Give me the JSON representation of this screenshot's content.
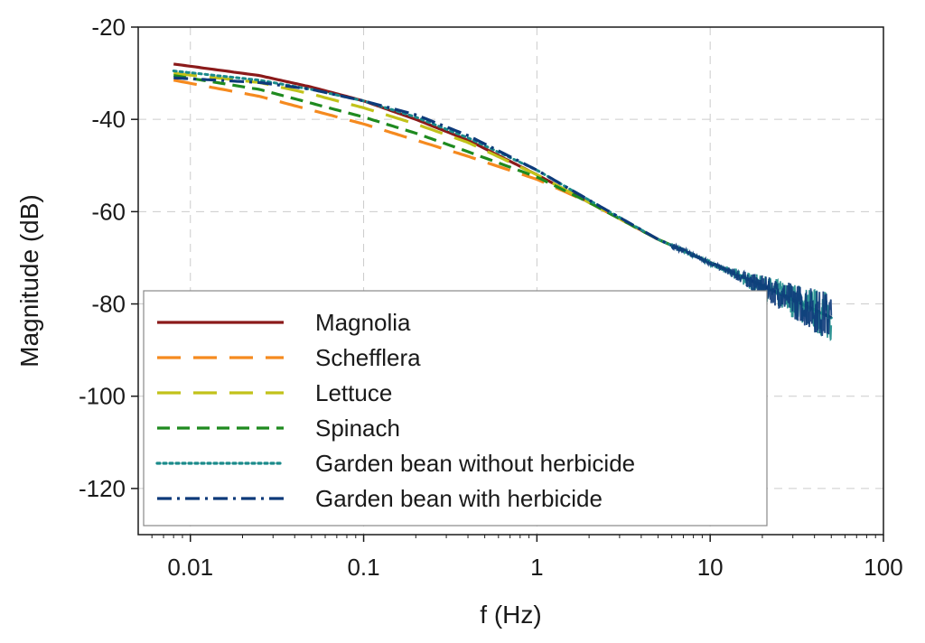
{
  "chart_data": {
    "type": "line",
    "xlabel": "f (Hz)",
    "ylabel": "Magnitude (dB)",
    "x_scale": "log",
    "xlim": [
      0.005,
      100
    ],
    "ylim": [
      -130,
      -20
    ],
    "x_ticks": [
      0.01,
      0.1,
      1,
      10,
      100
    ],
    "x_tick_labels": [
      "0.01",
      "0.1",
      "1",
      "10",
      "100"
    ],
    "y_ticks": [
      -20,
      -40,
      -60,
      -80,
      -100,
      -120
    ],
    "y_tick_labels": [
      "-20",
      "-40",
      "-60",
      "-80",
      "-100",
      "-120"
    ],
    "grid": true,
    "legend_position": "bottom-left",
    "series": [
      {
        "name": "Magnolia",
        "color": "#8b1a1a",
        "style": "solid",
        "x": [
          0.008,
          0.025,
          0.05,
          0.1,
          0.2,
          0.4,
          1,
          2,
          5,
          10,
          20,
          50
        ],
        "y": [
          -28,
          -30.5,
          -33,
          -36,
          -40,
          -44.5,
          -52,
          -58,
          -66,
          -71,
          -76,
          -83
        ]
      },
      {
        "name": "Schefflera",
        "color": "#f58a1f",
        "style": "long-dash",
        "x": [
          0.008,
          0.025,
          0.05,
          0.1,
          0.2,
          0.4,
          1,
          2,
          5,
          10,
          20,
          50
        ],
        "y": [
          -31.5,
          -35,
          -38,
          -41,
          -44.5,
          -48,
          -53,
          -58,
          -66,
          -71,
          -76,
          -83
        ]
      },
      {
        "name": "Lettuce",
        "color": "#c2c21a",
        "style": "long-dash",
        "x": [
          0.008,
          0.025,
          0.05,
          0.1,
          0.2,
          0.4,
          1,
          2,
          5,
          10,
          20,
          50
        ],
        "y": [
          -30,
          -32,
          -34.5,
          -37.5,
          -41,
          -45,
          -52,
          -58,
          -66,
          -71,
          -76,
          -83
        ]
      },
      {
        "name": "Spinach",
        "color": "#1f8a1f",
        "style": "dash",
        "x": [
          0.008,
          0.025,
          0.05,
          0.1,
          0.2,
          0.4,
          1,
          2,
          5,
          10,
          20,
          50
        ],
        "y": [
          -30.5,
          -33.5,
          -36.5,
          -39.5,
          -43,
          -47,
          -52.5,
          -58,
          -66,
          -71,
          -76,
          -83
        ]
      },
      {
        "name": "Garden bean without herbicide",
        "color": "#1a8a8a",
        "style": "dot",
        "x": [
          0.008,
          0.025,
          0.05,
          0.1,
          0.2,
          0.4,
          1,
          2,
          5,
          10,
          20,
          50
        ],
        "y": [
          -29.5,
          -31.5,
          -33.5,
          -36,
          -39.5,
          -44,
          -51,
          -57.5,
          -66,
          -71,
          -76,
          -83
        ]
      },
      {
        "name": "Garden bean with herbicide",
        "color": "#0d3a7a",
        "style": "dash-dot",
        "x": [
          0.008,
          0.025,
          0.05,
          0.1,
          0.2,
          0.4,
          1,
          2,
          5,
          10,
          20,
          50
        ],
        "y": [
          -31,
          -32,
          -33.5,
          -36,
          -39,
          -43.5,
          -51,
          -57.5,
          -66,
          -71,
          -76,
          -83
        ]
      }
    ]
  }
}
